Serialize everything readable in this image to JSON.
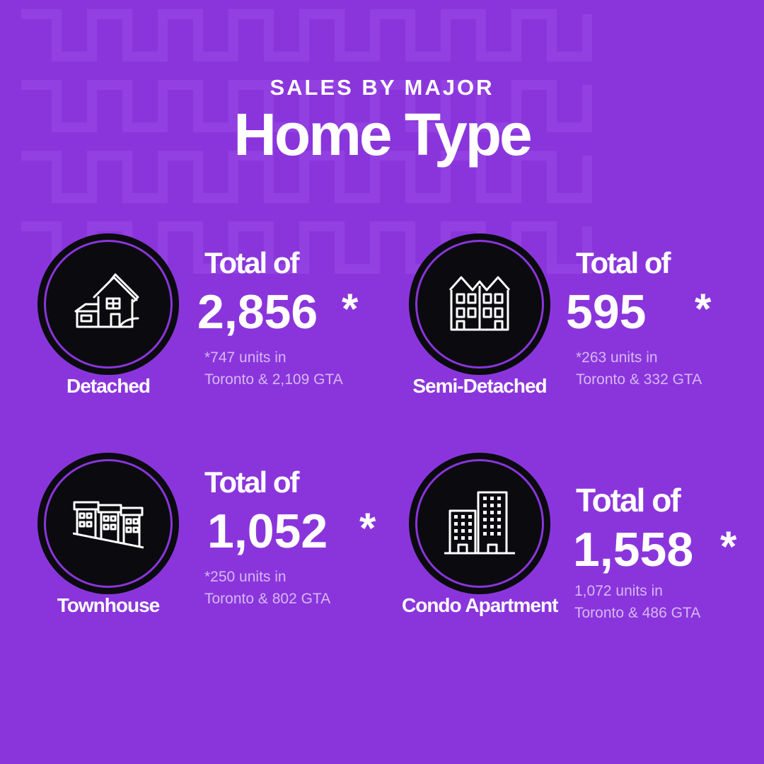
{
  "header": {
    "kicker": "SALES BY MAJOR",
    "title": "Home Type"
  },
  "colors": {
    "background": "#8a35dc",
    "circle": "#0b0b0f",
    "ring": "#8a35dc",
    "text": "#ffffff",
    "note_text": "#d6b8f3"
  },
  "cards": [
    {
      "icon": "detached-house-icon",
      "type_label": "Detached",
      "total_label": "Total of",
      "total_value": "2,856",
      "asterisk": "*",
      "note_line1": "*747 units in",
      "note_line2": "Toronto & 2,109 GTA"
    },
    {
      "icon": "semi-detached-house-icon",
      "type_label": "Semi-Detached",
      "total_label": "Total of",
      "total_value": "595",
      "asterisk": "*",
      "note_line1": "*263 units in",
      "note_line2": "Toronto & 332 GTA"
    },
    {
      "icon": "townhouse-icon",
      "type_label": "Townhouse",
      "total_label": "Total of",
      "total_value": "1,052",
      "asterisk": "*",
      "note_line1": "*250 units in",
      "note_line2": "Toronto & 802 GTA"
    },
    {
      "icon": "condo-building-icon",
      "type_label": "Condo Apartment",
      "total_label": "Total of",
      "total_value": "1,558",
      "asterisk": "*",
      "note_line1": "1,072 units in",
      "note_line2": "Toronto & 486 GTA"
    }
  ]
}
